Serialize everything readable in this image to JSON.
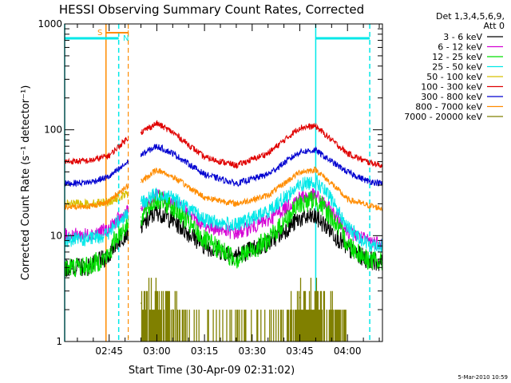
{
  "chart_data": {
    "type": "line",
    "title": "HESSI Observing Summary Count Rates, Corrected",
    "xlabel": "Start Time (30-Apr-09 02:31:02)",
    "ylabel": "Corrected Count Rate (s⁻¹ detector⁻¹)",
    "yscale": "log",
    "ylim": [
      1,
      1000
    ],
    "xlim_minutes": [
      0,
      100
    ],
    "x_ticks": [
      {
        "t": 14,
        "label": "02:45"
      },
      {
        "t": 29,
        "label": "03:00"
      },
      {
        "t": 44,
        "label": "03:15"
      },
      {
        "t": 59,
        "label": "03:30"
      },
      {
        "t": 74,
        "label": "03:45"
      },
      {
        "t": 89,
        "label": "04:00"
      }
    ],
    "y_ticks": [
      {
        "v": 1,
        "label": "1"
      },
      {
        "v": 10,
        "label": "10"
      },
      {
        "v": 100,
        "label": "100"
      },
      {
        "v": 1000,
        "label": "1000"
      }
    ],
    "legend_title": [
      "Det 1,3,4,5,6,9,",
      "Att 0"
    ],
    "legend_placement": "right",
    "gap_minutes": [
      20,
      22
    ],
    "x": [
      0,
      8,
      14,
      16,
      20,
      22,
      24,
      29,
      34,
      44,
      54,
      64,
      74,
      79,
      84,
      89,
      95,
      100
    ],
    "series": [
      {
        "name": "3 - 6 keV",
        "color": "#000000",
        "values": [
          5.0,
          5.1,
          6.5,
          8.5,
          11.0,
          null,
          12.0,
          17.0,
          14.0,
          8.0,
          6.5,
          8.5,
          14.5,
          15.0,
          11.0,
          7.5,
          6.0,
          5.5
        ]
      },
      {
        "name": "6 - 12 keV",
        "color": "#d400d4",
        "values": [
          10.0,
          10.2,
          11.5,
          13.5,
          17.0,
          null,
          18.0,
          24.0,
          21.0,
          12.5,
          10.5,
          14.0,
          23.0,
          24.0,
          17.0,
          11.0,
          9.0,
          8.5
        ]
      },
      {
        "name": "12 - 25 keV",
        "color": "#00e000",
        "values": [
          5.0,
          5.2,
          6.5,
          9.5,
          13.0,
          null,
          15.0,
          22.0,
          19.0,
          9.0,
          6.0,
          9.0,
          20.0,
          22.0,
          15.0,
          8.5,
          6.0,
          5.5
        ]
      },
      {
        "name": "25 - 50 keV",
        "color": "#00e8e8",
        "values": [
          9.0,
          9.3,
          10.5,
          13.0,
          16.5,
          null,
          20.0,
          25.0,
          23.0,
          14.0,
          12.5,
          17.0,
          30.0,
          33.0,
          22.0,
          12.0,
          8.5,
          8.0
        ]
      },
      {
        "name": "50 - 100 keV",
        "color": "#d8c000",
        "values": [
          20.0,
          20.0,
          21.0,
          22.0,
          25.0,
          null,
          null,
          null,
          null,
          null,
          null,
          null,
          null,
          null,
          null,
          null,
          null,
          null
        ]
      },
      {
        "name": "100 - 300 keV",
        "color": "#e00000",
        "values": [
          50.0,
          51.0,
          57.0,
          65.0,
          85.0,
          null,
          95.0,
          115.0,
          95.0,
          55.0,
          46.0,
          60.0,
          105.0,
          108.0,
          80.0,
          60.0,
          50.0,
          46.0
        ]
      },
      {
        "name": "300 - 800 keV",
        "color": "#0000d0",
        "values": [
          31.0,
          32.0,
          36.0,
          40.0,
          50.0,
          null,
          58.0,
          70.0,
          60.0,
          38.0,
          31.0,
          38.0,
          62.0,
          64.0,
          50.0,
          40.0,
          33.0,
          31.0
        ]
      },
      {
        "name": "800 - 7000 keV",
        "color": "#ff8c00",
        "values": [
          18.5,
          19.0,
          21.0,
          24.0,
          30.0,
          null,
          32.0,
          42.0,
          36.0,
          23.0,
          20.0,
          24.0,
          40.0,
          42.0,
          31.0,
          22.0,
          19.5,
          18.0
        ]
      },
      {
        "name": "7000 - 20000 keV",
        "color": "#808000",
        "values": [
          null,
          null,
          null,
          null,
          1.1,
          null,
          2.3,
          2.6,
          2.0,
          1.0,
          1.0,
          1.0,
          2.6,
          2.8,
          1.8,
          1.0,
          null,
          null
        ]
      }
    ],
    "annotations": {
      "orange_vline_minutes": [
        13,
        20
      ],
      "cyan_vline_minutes": [
        0,
        17,
        79,
        96
      ],
      "cyan_bar_segments_minutes": [
        [
          0,
          17
        ],
        [
          79,
          96
        ]
      ],
      "orange_bracket_minutes": [
        13,
        20
      ],
      "labels": [
        {
          "text": "S",
          "color": "#ff8c00"
        },
        {
          "text": "N",
          "color": "#00e8e8"
        }
      ]
    },
    "timestamp": "5-Mar-2010 10:59"
  },
  "colors": {
    "background": "#ffffff",
    "axes": "#000000",
    "orange": "#ff8c00",
    "cyan": "#00e8e8"
  }
}
